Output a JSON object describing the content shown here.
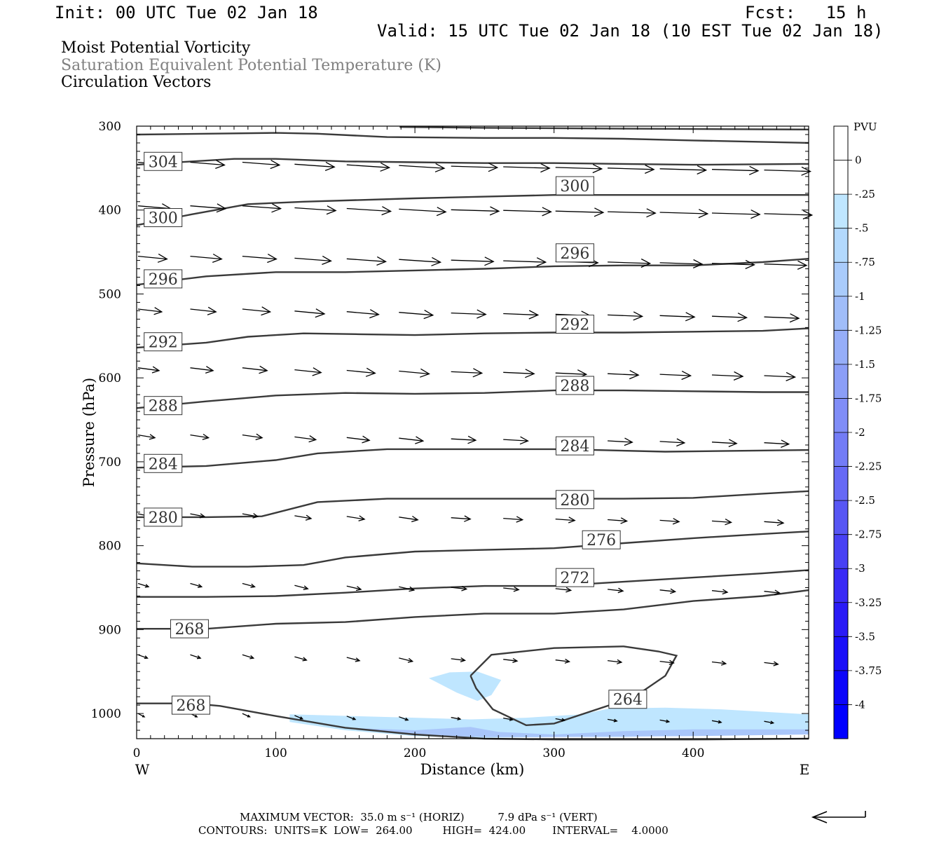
{
  "header": {
    "init": "Init: 00 UTC Tue 02 Jan 18",
    "fcst": "Fcst:   15 h",
    "valid": "Valid: 15 UTC Tue 02 Jan 18 (10 EST Tue 02 Jan 18)"
  },
  "fields": {
    "line1": "Moist Potential Vorticity",
    "line2": "Saturation Equivalent Potential Temperature (K)",
    "line3": "Circulation Vectors"
  },
  "colors": {
    "line1": "#000000",
    "line2": "#808080",
    "line3": "#000000",
    "contour": "#3a3a3a",
    "mpv_light": "#bfe6ff",
    "mpv_mid": "#a9c6fa"
  },
  "footer": {
    "max_vector": "MAXIMUM VECTOR:  35.0 m s⁻¹ (HORIZ)          7.9 dPa s⁻¹ (VERT)",
    "contours": "CONTOURS:  UNITS=K  LOW=  264.00         HIGH=  424.00        INTERVAL=    4.0000"
  },
  "chart_data": {
    "type": "cross-section",
    "xlabel": "Distance (km)",
    "ylabel": "Pressure (hPa)",
    "xlim": [
      0,
      483
    ],
    "ylim": [
      1030,
      300
    ],
    "x_ticks": [
      "0",
      "100",
      "200",
      "300",
      "400"
    ],
    "y_ticks": [
      "300",
      "400",
      "500",
      "600",
      "700",
      "800",
      "900",
      "1000"
    ],
    "x_end_labels": {
      "west": "W",
      "east": "E"
    },
    "contour_units": "K",
    "contours": [
      {
        "value": 264,
        "label_x": 353,
        "label_p": 983,
        "points": [
          [
            240,
            955
          ],
          [
            255,
            930
          ],
          [
            300,
            922
          ],
          [
            350,
            920
          ],
          [
            375,
            926
          ],
          [
            388,
            931
          ],
          [
            380,
            955
          ],
          [
            365,
            972
          ],
          [
            340,
            990
          ],
          [
            300,
            1012
          ],
          [
            280,
            1014
          ],
          [
            256,
            995
          ],
          [
            244,
            970
          ],
          [
            240,
            955
          ]
        ]
      },
      {
        "value": 268,
        "label_x": 38,
        "label_p": 899,
        "points": [
          [
            0,
            899
          ],
          [
            50,
            899
          ],
          [
            100,
            893
          ],
          [
            150,
            891
          ],
          [
            200,
            885
          ],
          [
            250,
            881
          ],
          [
            300,
            881
          ],
          [
            350,
            876
          ],
          [
            400,
            866
          ],
          [
            450,
            860
          ],
          [
            483,
            853
          ]
        ]
      },
      {
        "value": 268,
        "label_x": 39,
        "label_p": 990,
        "points": [
          [
            0,
            988
          ],
          [
            40,
            988
          ],
          [
            60,
            991
          ],
          [
            100,
            1003
          ],
          [
            150,
            1017
          ],
          [
            200,
            1025
          ],
          [
            250,
            1030
          ],
          [
            300,
            1031
          ],
          [
            350,
            1031
          ],
          [
            400,
            1031
          ],
          [
            483,
            1030
          ]
        ]
      },
      {
        "value": 272,
        "label_x": 315,
        "label_p": 838,
        "points": [
          [
            0,
            861
          ],
          [
            50,
            861
          ],
          [
            100,
            860
          ],
          [
            150,
            856
          ],
          [
            200,
            851
          ],
          [
            250,
            848
          ],
          [
            300,
            848
          ],
          [
            350,
            843
          ],
          [
            400,
            838
          ],
          [
            450,
            833
          ],
          [
            483,
            829
          ]
        ]
      },
      {
        "value": 276,
        "label_x": 334,
        "label_p": 793,
        "points": [
          [
            0,
            821
          ],
          [
            40,
            825
          ],
          [
            80,
            825
          ],
          [
            120,
            823
          ],
          [
            150,
            814
          ],
          [
            200,
            807
          ],
          [
            250,
            805
          ],
          [
            300,
            803
          ],
          [
            350,
            797
          ],
          [
            400,
            791
          ],
          [
            450,
            786
          ],
          [
            483,
            783
          ]
        ]
      },
      {
        "value": 280,
        "label_x": 315,
        "label_p": 745,
        "points": [
          [
            0,
            766
          ],
          [
            50,
            766
          ],
          [
            90,
            765
          ],
          [
            130,
            748
          ],
          [
            180,
            744
          ],
          [
            250,
            744
          ],
          [
            300,
            744
          ],
          [
            350,
            744
          ],
          [
            400,
            743
          ],
          [
            450,
            738
          ],
          [
            483,
            735
          ]
        ]
      },
      {
        "value": 280,
        "label_x": 19,
        "label_p": 766,
        "points": [
          [
            0,
            766
          ],
          [
            0,
            766
          ]
        ]
      },
      {
        "value": 284,
        "label_x": 19,
        "label_p": 702,
        "points": [
          [
            0,
            707
          ],
          [
            50,
            705
          ],
          [
            100,
            698
          ],
          [
            130,
            690
          ],
          [
            180,
            685
          ],
          [
            250,
            685
          ],
          [
            300,
            685
          ],
          [
            330,
            686
          ],
          [
            380,
            688
          ],
          [
            430,
            687
          ],
          [
            483,
            686
          ]
        ]
      },
      {
        "value": 288,
        "label_x": 19,
        "label_p": 633,
        "points": [
          [
            0,
            636
          ],
          [
            50,
            628
          ],
          [
            100,
            621
          ],
          [
            150,
            618
          ],
          [
            200,
            619
          ],
          [
            250,
            618
          ],
          [
            300,
            615
          ],
          [
            350,
            615
          ],
          [
            400,
            616
          ],
          [
            450,
            617
          ],
          [
            483,
            617
          ]
        ]
      },
      {
        "value": 292,
        "label_x": 19,
        "label_p": 557,
        "points": [
          [
            0,
            564
          ],
          [
            50,
            558
          ],
          [
            80,
            551
          ],
          [
            120,
            547
          ],
          [
            160,
            548
          ],
          [
            200,
            549
          ],
          [
            250,
            547
          ],
          [
            300,
            546
          ],
          [
            350,
            546
          ],
          [
            400,
            545
          ],
          [
            450,
            544
          ],
          [
            483,
            541
          ]
        ]
      },
      {
        "value": 296,
        "label_x": 19,
        "label_p": 482,
        "points": [
          [
            0,
            489
          ],
          [
            50,
            479
          ],
          [
            100,
            474
          ],
          [
            150,
            474
          ],
          [
            200,
            472
          ],
          [
            250,
            470
          ],
          [
            300,
            467
          ],
          [
            350,
            466
          ],
          [
            400,
            466
          ],
          [
            450,
            462
          ],
          [
            483,
            458
          ]
        ]
      },
      {
        "value": 300,
        "label_x": 19,
        "label_p": 409,
        "points": [
          [
            0,
            418
          ],
          [
            40,
            405
          ],
          [
            80,
            393
          ],
          [
            120,
            390
          ],
          [
            160,
            388
          ],
          [
            200,
            386
          ],
          [
            250,
            384
          ],
          [
            300,
            382
          ],
          [
            350,
            382
          ],
          [
            400,
            382
          ],
          [
            483,
            382
          ]
        ]
      },
      {
        "value": 304,
        "label_x": 19,
        "label_p": 342,
        "points": [
          [
            0,
            346
          ],
          [
            40,
            342
          ],
          [
            70,
            339
          ],
          [
            100,
            339
          ],
          [
            150,
            342
          ],
          [
            200,
            343
          ],
          [
            250,
            344
          ],
          [
            300,
            344
          ],
          [
            350,
            345
          ],
          [
            400,
            346
          ],
          [
            483,
            345
          ]
        ]
      },
      {
        "value": 308,
        "label_x": null,
        "label_p": null,
        "points": [
          [
            0,
            310
          ],
          [
            50,
            309
          ],
          [
            100,
            308
          ],
          [
            130,
            309
          ],
          [
            180,
            313
          ],
          [
            250,
            314
          ],
          [
            300,
            314
          ],
          [
            350,
            315
          ],
          [
            400,
            317
          ],
          [
            483,
            320
          ]
        ]
      },
      {
        "value": 312,
        "label_x": null,
        "label_p": null,
        "points": [
          [
            189,
            301
          ],
          [
            250,
            302
          ],
          [
            350,
            303
          ],
          [
            483,
            304
          ]
        ]
      }
    ],
    "contour_labels_extra": [
      {
        "value": 300,
        "label_x": 315,
        "label_p": 371
      },
      {
        "value": 296,
        "label_x": 315,
        "label_p": 451
      },
      {
        "value": 292,
        "label_x": 315,
        "label_p": 536
      },
      {
        "value": 288,
        "label_x": 315,
        "label_p": 609
      },
      {
        "value": 284,
        "label_x": 315,
        "label_p": 681
      }
    ],
    "mpv_regions": [
      {
        "level": "-0.25",
        "color": "#bfe6ff",
        "points": [
          [
            210,
            958
          ],
          [
            225,
            951
          ],
          [
            245,
            950
          ],
          [
            262,
            960
          ],
          [
            255,
            978
          ],
          [
            245,
            985
          ],
          [
            230,
            975
          ],
          [
            210,
            958
          ]
        ]
      },
      {
        "level": "-0.25",
        "color": "#bfe6ff",
        "points": [
          [
            110,
            1001
          ],
          [
            200,
            1005
          ],
          [
            240,
            1007
          ],
          [
            280,
            1005
          ],
          [
            320,
            1001
          ],
          [
            340,
            994
          ],
          [
            380,
            993
          ],
          [
            420,
            995
          ],
          [
            483,
            1001
          ],
          [
            483,
            1024
          ],
          [
            420,
            1025
          ],
          [
            350,
            1028
          ],
          [
            300,
            1028
          ],
          [
            250,
            1029
          ],
          [
            200,
            1027
          ],
          [
            150,
            1020
          ],
          [
            110,
            1010
          ],
          [
            110,
            1001
          ]
        ]
      },
      {
        "level": "-0.5",
        "color": "#a9c6fa",
        "points": [
          [
            150,
            1017
          ],
          [
            200,
            1020
          ],
          [
            240,
            1016
          ],
          [
            260,
            1022
          ],
          [
            300,
            1025
          ],
          [
            350,
            1021
          ],
          [
            400,
            1019
          ],
          [
            483,
            1019
          ],
          [
            483,
            1025
          ],
          [
            400,
            1027
          ],
          [
            300,
            1028
          ],
          [
            250,
            1028
          ],
          [
            200,
            1026
          ],
          [
            150,
            1017
          ]
        ]
      }
    ],
    "vectors_note": "circulation vectors, length scaled to horizontal wind",
    "colorbar": {
      "title": "PVU",
      "labels": [
        "0",
        "-.25",
        "-.5",
        "-.75",
        "-1",
        "-1.25",
        "-1.5",
        "-1.75",
        "-2",
        "-2.25",
        "-2.5",
        "-2.75",
        "-3",
        "-3.25",
        "-3.5",
        "-3.75",
        "-4"
      ],
      "colors": [
        "#ffffff",
        "#ffffff",
        "#bfe6ff",
        "#b3d9fd",
        "#a9cbfb",
        "#a0bdf9",
        "#96aef8",
        "#8b9ef7",
        "#808df7",
        "#737cf6",
        "#6669f5",
        "#5756f4",
        "#4841f4",
        "#392bf5",
        "#2a1bf6",
        "#1a10f8",
        "#0c06fa",
        "#0000ff"
      ]
    }
  }
}
